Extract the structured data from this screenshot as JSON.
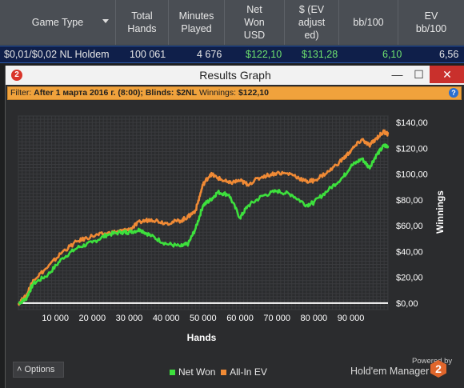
{
  "stats_header": {
    "columns": [
      "Game Type",
      "Total\nHands",
      "Minutes\nPlayed",
      "Net\nWon\nUSD",
      "$ (EV\nadjust\ned)",
      "bb/100",
      "EV\nbb/100"
    ]
  },
  "stats_row": {
    "game_type": "$0,01/$0,02 NL Holdem",
    "total_hands": "100 061",
    "minutes_played": "4 676",
    "net_won_usd": "$122,10",
    "ev_adjusted": "$131,28",
    "bb_100": "6,10",
    "ev_bb_100": "6,56"
  },
  "window": {
    "title": "Results Graph",
    "logo": "2",
    "minimize": "—",
    "maximize": "☐",
    "close": "✕"
  },
  "filter_bar": {
    "label": "Filter: ",
    "text": "After 1 марта 2016 г. (8:00); Blinds: $2NL",
    "winnings_label": " Winnings: ",
    "winnings_value": "$122,10",
    "help": "?"
  },
  "options_button": {
    "label": "Options",
    "icon": "˄"
  },
  "branding": {
    "powered": "Powered by",
    "product": "Hold'em Manager",
    "badge": "2"
  },
  "colors": {
    "net_won": "#3de03d",
    "all_in_ev": "#f08a35",
    "zero_line": "#ffffff"
  },
  "chart_data": {
    "type": "line",
    "xlabel": "Hands",
    "ylabel": "Winnings",
    "xlim": [
      0,
      100061
    ],
    "ylim": [
      -5,
      145
    ],
    "x_ticks": [
      10000,
      20000,
      30000,
      40000,
      50000,
      60000,
      70000,
      80000,
      90000
    ],
    "x_tick_labels": [
      "10 000",
      "20 000",
      "30 000",
      "40 000",
      "50 000",
      "60 000",
      "70 000",
      "80 000",
      "90 000"
    ],
    "y_ticks": [
      0,
      20,
      40,
      60,
      80,
      100,
      120,
      140
    ],
    "y_tick_labels": [
      "$0,00",
      "$20,00",
      "$40,00",
      "$60,00",
      "$80,00",
      "$100,00",
      "$120,00",
      "$140,00"
    ],
    "grid": true,
    "legend_position": "bottom",
    "series": [
      {
        "name": "Net Won",
        "x": [
          0,
          2000,
          4000,
          8000,
          12000,
          16000,
          20000,
          24000,
          28000,
          30000,
          33000,
          36000,
          40000,
          44000,
          46000,
          48000,
          50000,
          52000,
          54000,
          57000,
          60000,
          62000,
          66000,
          70000,
          74000,
          78000,
          80000,
          84000,
          88000,
          90000,
          93000,
          95000,
          97000,
          99000,
          100061
        ],
        "y": [
          0,
          3,
          15,
          22,
          35,
          43,
          47,
          53,
          55,
          55,
          57,
          52,
          46,
          44,
          46,
          58,
          76,
          80,
          86,
          84,
          66,
          75,
          83,
          87,
          84,
          76,
          78,
          88,
          98,
          106,
          112,
          105,
          115,
          122,
          122
        ]
      },
      {
        "name": "All-In EV",
        "x": [
          0,
          2000,
          4000,
          8000,
          12000,
          16000,
          20000,
          24000,
          28000,
          30000,
          33000,
          36000,
          40000,
          44000,
          46000,
          48000,
          50000,
          52000,
          54000,
          57000,
          60000,
          62000,
          66000,
          70000,
          74000,
          78000,
          80000,
          84000,
          88000,
          90000,
          93000,
          95000,
          97000,
          99000,
          100061
        ],
        "y": [
          0,
          5,
          18,
          28,
          40,
          48,
          52,
          54,
          56,
          57,
          63,
          65,
          62,
          64,
          67,
          72,
          92,
          100,
          97,
          93,
          95,
          92,
          98,
          101,
          100,
          94,
          95,
          102,
          112,
          118,
          127,
          122,
          128,
          133,
          131
        ]
      }
    ]
  }
}
